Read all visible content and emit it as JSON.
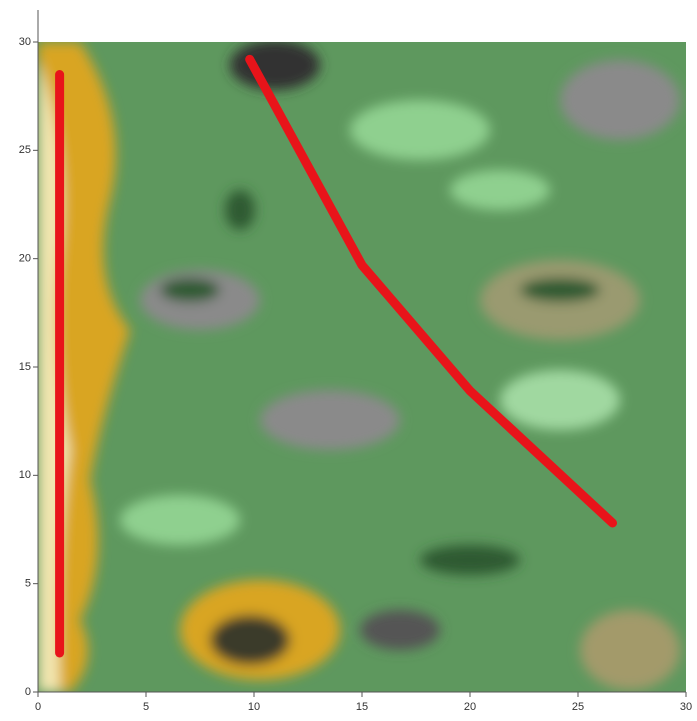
{
  "chart_data": {
    "type": "line",
    "xlim": [
      0,
      30
    ],
    "ylim": [
      0,
      30
    ],
    "xticks": [
      0,
      5,
      10,
      15,
      20,
      25,
      30
    ],
    "yticks": [
      0,
      5,
      10,
      15,
      20,
      25,
      30
    ],
    "series": [
      {
        "color": "#e8141a",
        "x": [
          1,
          1
        ],
        "values": [
          1.8,
          28.5
        ]
      },
      {
        "color": "#e8141a",
        "x": [
          9.8,
          15,
          20,
          26.6
        ],
        "values": [
          29.2,
          19.7,
          13.9,
          7.8
        ]
      }
    ]
  }
}
